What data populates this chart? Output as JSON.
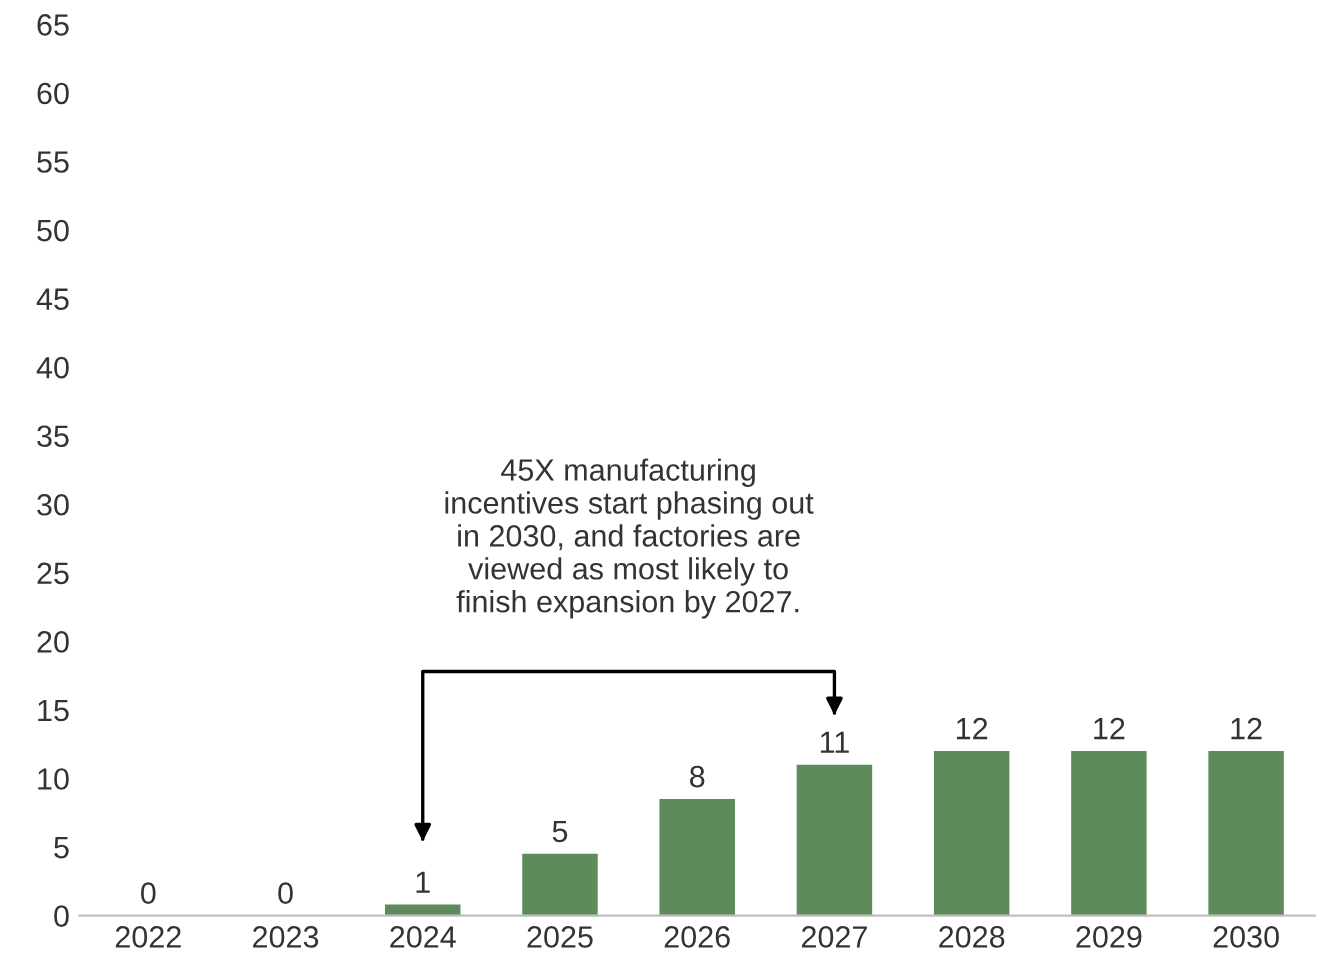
{
  "chart_data": {
    "type": "bar",
    "categories": [
      "2022",
      "2023",
      "2024",
      "2025",
      "2026",
      "2027",
      "2028",
      "2029",
      "2030"
    ],
    "values": [
      0,
      0,
      0.8,
      4.5,
      8.5,
      11,
      12,
      12,
      12
    ],
    "value_labels": [
      "0",
      "0",
      "1",
      "5",
      "8",
      "11",
      "12",
      "12",
      "12"
    ],
    "color": "#5e8b5b",
    "ylim": [
      0,
      65
    ],
    "yticks": [
      0,
      5,
      10,
      15,
      20,
      25,
      30,
      35,
      40,
      45,
      50,
      55,
      60,
      65
    ],
    "grid": false,
    "annotations": [
      "45X manufacturing\nincentives start phasing out\nin 2030, and factories are\nviewed as most likely to\nfinish expansion by 2027."
    ]
  }
}
